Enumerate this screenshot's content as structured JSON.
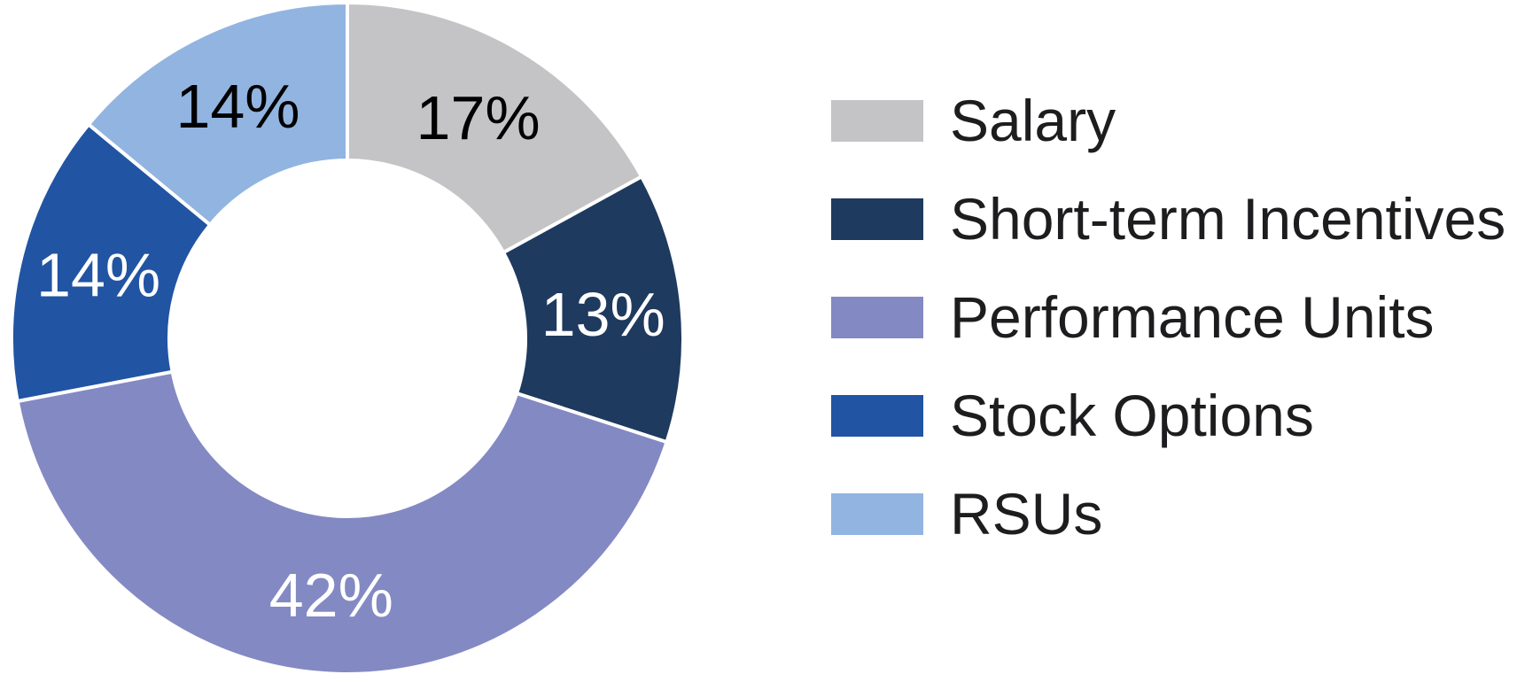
{
  "chart_data": {
    "type": "pie",
    "subtype": "donut",
    "title": "",
    "categories": [
      "Salary",
      "Short-term Incentives",
      "Performance Units",
      "Stock Options",
      "RSUs"
    ],
    "values": [
      17,
      13,
      42,
      14,
      14
    ],
    "slice_labels": [
      "17%",
      "13%",
      "42%",
      "14%",
      "14%"
    ],
    "colors": [
      "#c4c4c6",
      "#1f3a5f",
      "#8389c3",
      "#2154a3",
      "#92b4e0"
    ],
    "slice_label_colors": [
      "#000000",
      "#ffffff",
      "#ffffff",
      "#ffffff",
      "#000000"
    ],
    "start_angle_deg": 0,
    "direction": "clockwise",
    "donut_hole_ratio": 0.53,
    "slice_gap_color": "#ffffff",
    "legend_position": "right",
    "background": "#ffffff"
  }
}
